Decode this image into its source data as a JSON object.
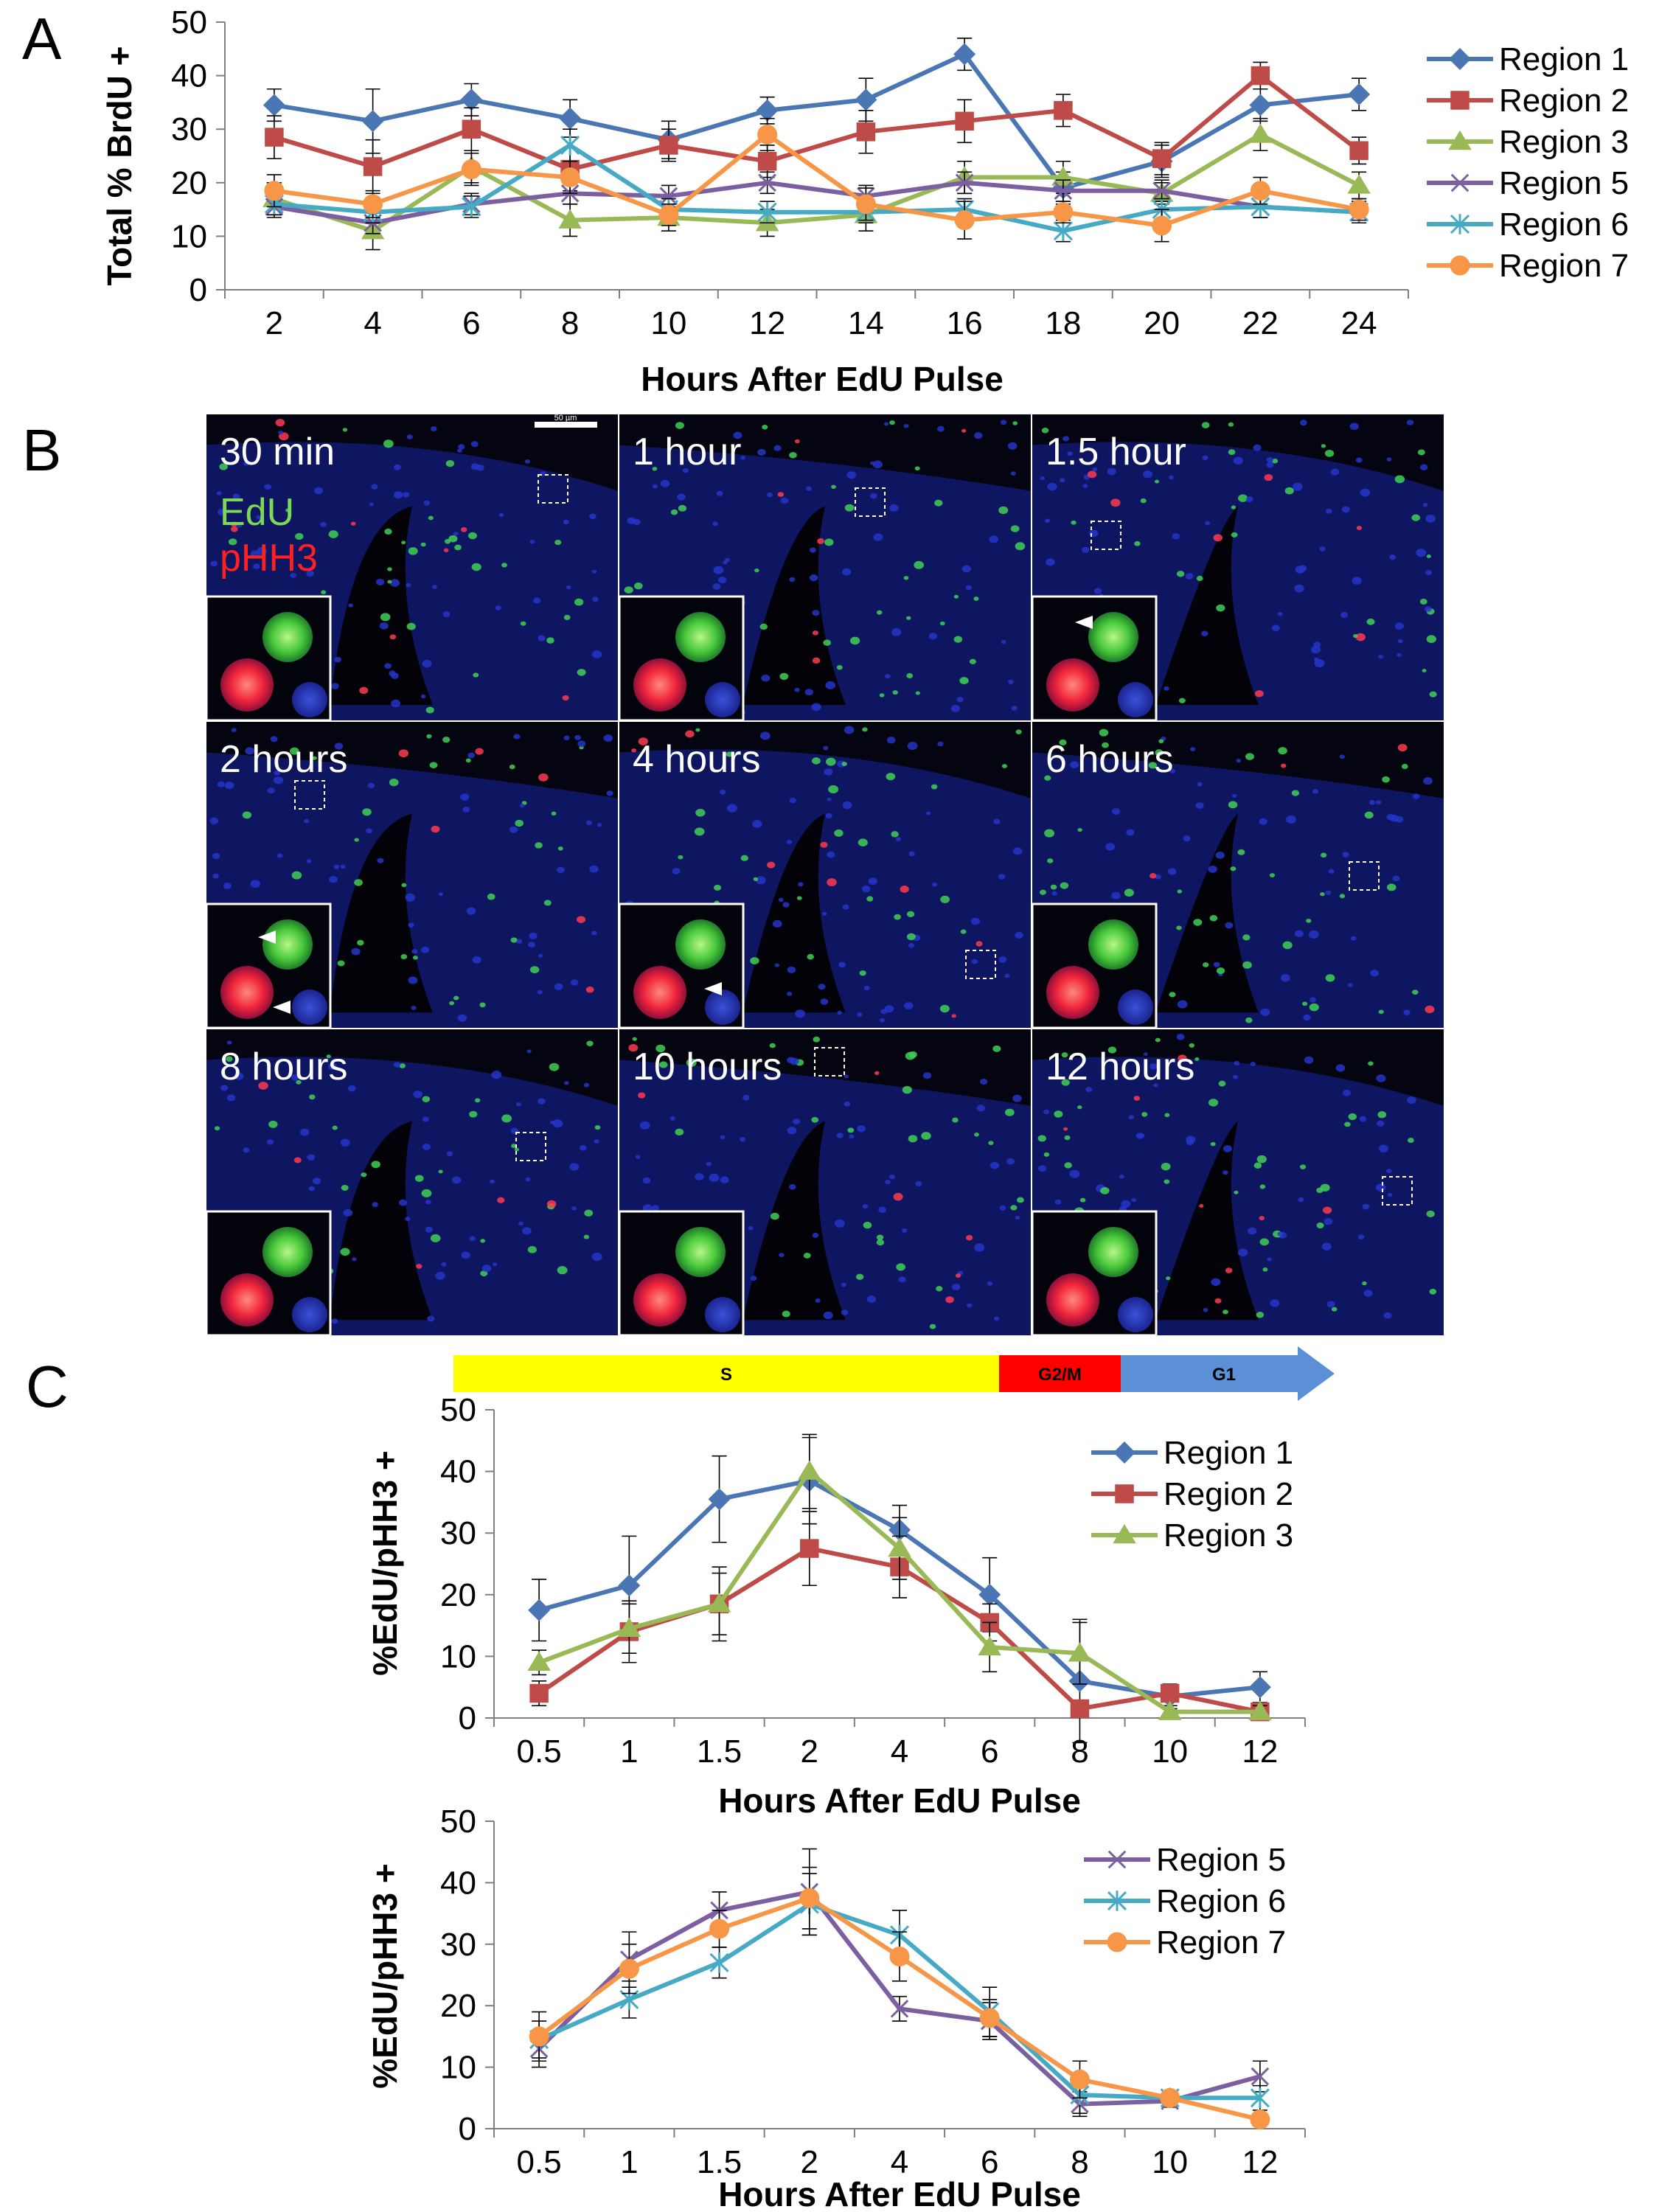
{
  "panel_labels": {
    "a": "A",
    "b": "B",
    "c": "C"
  },
  "series_styles": [
    {
      "name": "Region 1",
      "color": "#4a76b3",
      "marker": "diamond"
    },
    {
      "name": "Region 2",
      "color": "#be4b48",
      "marker": "square"
    },
    {
      "name": "Region 3",
      "color": "#98b955",
      "marker": "triangle"
    },
    {
      "name": "Region 5",
      "color": "#7c5fa0",
      "marker": "x"
    },
    {
      "name": "Region 6",
      "color": "#46aac5",
      "marker": "star"
    },
    {
      "name": "Region 7",
      "color": "#f79646",
      "marker": "circle"
    }
  ],
  "phase_bar": {
    "labels": [
      "S",
      "G2/M",
      "G1"
    ],
    "colors": [
      "#ffff00",
      "#ff0000",
      "#5b8fd6"
    ]
  },
  "micrographs": {
    "channel_labels": [
      "EdU",
      "pHH3"
    ],
    "channel_colors": [
      "#7cd855",
      "#ff2020"
    ],
    "scale_bar_label": "50 µm",
    "panels": [
      {
        "label": "30 min"
      },
      {
        "label": "1 hour"
      },
      {
        "label": "1.5 hour"
      },
      {
        "label": "2 hours"
      },
      {
        "label": "4 hours"
      },
      {
        "label": "6 hours"
      },
      {
        "label": "8 hours"
      },
      {
        "label": "10 hours"
      },
      {
        "label": "12 hours"
      }
    ]
  },
  "chart_data": [
    {
      "id": "A",
      "type": "line",
      "title": "",
      "xlabel": "Hours After EdU Pulse",
      "ylabel": "Total % BrdU +",
      "categories": [
        "2",
        "4",
        "6",
        "8",
        "10",
        "12",
        "14",
        "16",
        "18",
        "20",
        "22",
        "24"
      ],
      "ylim": [
        0,
        50
      ],
      "yticks": [
        0,
        10,
        20,
        30,
        40,
        50
      ],
      "legend_position": "right",
      "series": [
        {
          "name": "Region 1",
          "values": [
            34.5,
            31.5,
            35.5,
            32,
            28,
            33.5,
            35.5,
            44,
            19,
            24,
            34.5,
            36.5
          ],
          "errors": [
            3,
            6,
            3,
            3.5,
            3.5,
            2.5,
            4,
            3,
            3,
            3,
            3,
            3
          ]
        },
        {
          "name": "Region 2",
          "values": [
            28.5,
            23,
            30,
            22.5,
            27,
            24,
            29.5,
            31.5,
            33.5,
            24.5,
            40,
            26
          ],
          "errors": [
            4,
            5,
            4,
            4,
            3,
            3,
            4,
            4,
            3,
            3,
            2.5,
            2.5
          ]
        },
        {
          "name": "Region 3",
          "values": [
            17,
            11,
            23,
            13,
            13.5,
            12.5,
            14,
            21,
            21,
            18,
            29,
            19.5
          ],
          "errors": [
            3,
            3.5,
            3,
            3,
            2.5,
            2.5,
            3,
            3,
            3,
            2,
            3,
            2.5
          ]
        },
        {
          "name": "Region 5",
          "values": [
            15.5,
            12.5,
            16,
            18,
            17.5,
            20,
            17.5,
            20,
            18.5,
            18.5,
            15.5,
            14.5
          ],
          "errors": [
            2,
            2,
            2,
            2,
            2,
            2,
            2,
            2,
            2,
            2,
            2,
            2
          ]
        },
        {
          "name": "Region 6",
          "values": [
            16,
            14.5,
            15.5,
            27,
            15,
            14.5,
            14.5,
            15,
            11,
            15,
            15.5,
            14.5
          ],
          "errors": [
            2,
            2,
            2,
            3,
            2,
            2,
            2,
            2,
            2,
            2,
            2,
            2
          ]
        },
        {
          "name": "Region 7",
          "values": [
            18.5,
            16,
            22.5,
            21,
            14,
            29,
            16,
            13,
            14.5,
            12,
            18.5,
            15
          ],
          "errors": [
            3,
            2.5,
            3,
            3,
            2,
            3,
            3,
            3.5,
            2,
            3,
            2.5,
            2
          ]
        }
      ]
    },
    {
      "id": "C1",
      "type": "line",
      "title": "",
      "xlabel": "Hours After EdU Pulse",
      "ylabel": "%EdU/pHH3 +",
      "categories": [
        "0.5",
        "1",
        "1.5",
        "2",
        "4",
        "6",
        "8",
        "10",
        "12"
      ],
      "ylim": [
        0,
        50
      ],
      "yticks": [
        0,
        10,
        20,
        30,
        40,
        50
      ],
      "legend_position": "top-right",
      "series": [
        {
          "name": "Region 1",
          "values": [
            17.5,
            21.5,
            35.5,
            38.5,
            30.5,
            20,
            6,
            3.5,
            5
          ],
          "errors": [
            5,
            8,
            7,
            7,
            4,
            6,
            10,
            2,
            2.5
          ]
        },
        {
          "name": "Region 2",
          "values": [
            4,
            14,
            18.5,
            27.5,
            24.5,
            15.5,
            1.5,
            4,
            1
          ],
          "errors": [
            2,
            5,
            5,
            6,
            5,
            3,
            1,
            1,
            1
          ]
        },
        {
          "name": "Region 3",
          "values": [
            9,
            14.5,
            18.5,
            40,
            27.5,
            11.5,
            10.5,
            1,
            1
          ],
          "errors": [
            2,
            4,
            6,
            6,
            5,
            4,
            5,
            1,
            1
          ]
        }
      ]
    },
    {
      "id": "C2",
      "type": "line",
      "title": "",
      "xlabel": "Hours After EdU Pulse",
      "ylabel": "%EdU/pHH3 +",
      "categories": [
        "0.5",
        "1",
        "1.5",
        "2",
        "4",
        "6",
        "8",
        "10",
        "12"
      ],
      "ylim": [
        0,
        50
      ],
      "yticks": [
        0,
        10,
        20,
        30,
        40,
        50
      ],
      "legend_position": "top-right",
      "series": [
        {
          "name": "Region 5",
          "values": [
            13,
            27.5,
            35.5,
            38.5,
            19.5,
            17.5,
            4,
            4.5,
            8.5
          ],
          "errors": [
            3,
            4.5,
            3,
            7,
            2,
            3,
            2,
            1,
            2.5
          ]
        },
        {
          "name": "Region 6",
          "values": [
            14.5,
            21,
            27,
            36.5,
            31.5,
            19,
            5.5,
            5,
            5
          ],
          "errors": [
            3,
            3,
            2.5,
            5,
            4,
            4,
            3,
            1,
            2
          ]
        },
        {
          "name": "Region 7",
          "values": [
            15,
            26,
            32.5,
            37.5,
            28,
            18,
            8,
            5,
            1.5
          ],
          "errors": [
            4,
            4,
            3,
            5,
            4,
            3,
            3,
            1,
            1
          ]
        }
      ]
    }
  ]
}
